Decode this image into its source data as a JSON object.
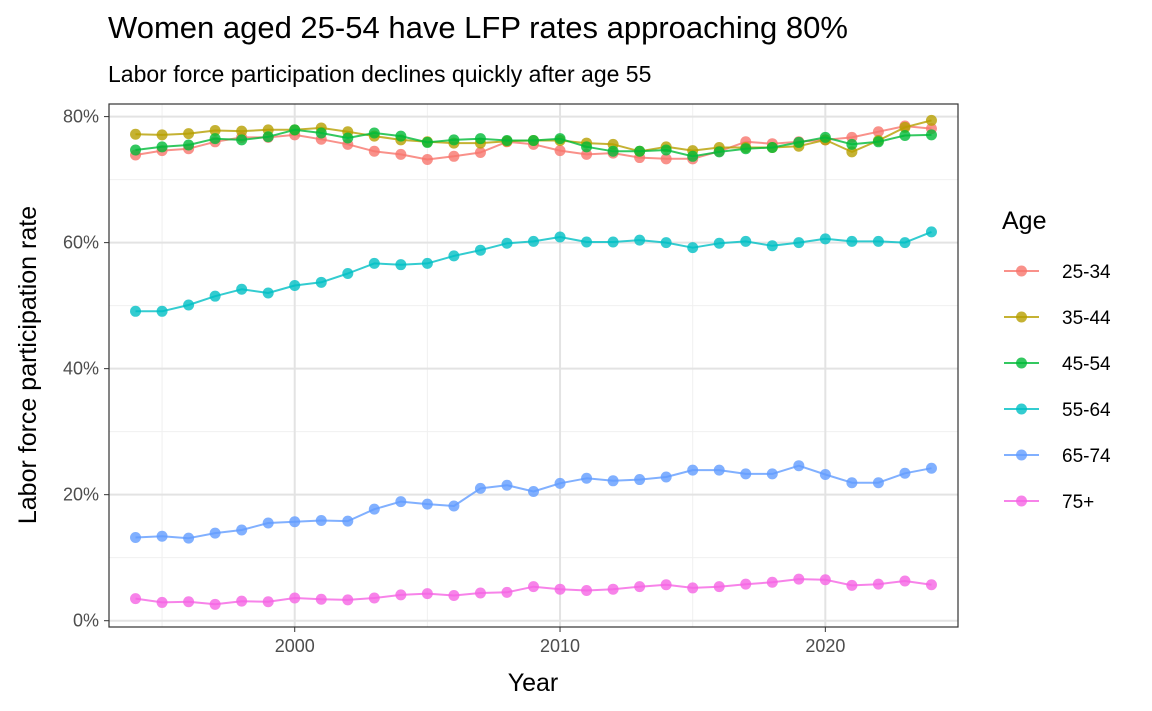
{
  "chart_data": {
    "type": "line",
    "title": "Women aged 25-54 have LFP rates approaching 80%",
    "subtitle": "Labor force participation declines quickly after age 55",
    "xlabel": "Year",
    "ylabel": "Labor force participation rate",
    "xlim": [
      1993,
      2025
    ],
    "ylim": [
      -0.01,
      0.82
    ],
    "x_ticks": [
      2000,
      2010,
      2020
    ],
    "x_tick_labels": [
      "2000",
      "2010",
      "2020"
    ],
    "y_ticks": [
      0,
      0.2,
      0.4,
      0.6,
      0.8
    ],
    "y_tick_labels": [
      "0%",
      "20%",
      "40%",
      "60%",
      "80%"
    ],
    "grid": true,
    "legend": {
      "title": "Age",
      "position": "right"
    },
    "x": [
      1994,
      1995,
      1996,
      1997,
      1998,
      1999,
      2000,
      2001,
      2002,
      2003,
      2004,
      2005,
      2006,
      2007,
      2008,
      2009,
      2010,
      2011,
      2012,
      2013,
      2014,
      2015,
      2016,
      2017,
      2018,
      2019,
      2020,
      2021,
      2022,
      2023,
      2024
    ],
    "series": [
      {
        "name": "25-34",
        "color": "#F8766D",
        "values": [
          0.739,
          0.746,
          0.749,
          0.76,
          0.767,
          0.767,
          0.771,
          0.764,
          0.756,
          0.745,
          0.74,
          0.732,
          0.737,
          0.743,
          0.76,
          0.756,
          0.746,
          0.74,
          0.742,
          0.735,
          0.733,
          0.733,
          0.745,
          0.76,
          0.757,
          0.76,
          0.763,
          0.767,
          0.776,
          0.785,
          0.781
        ]
      },
      {
        "name": "35-44",
        "color": "#B79F00",
        "values": [
          0.772,
          0.771,
          0.773,
          0.778,
          0.777,
          0.779,
          0.779,
          0.782,
          0.776,
          0.769,
          0.763,
          0.76,
          0.758,
          0.758,
          0.761,
          0.762,
          0.762,
          0.758,
          0.756,
          0.745,
          0.752,
          0.746,
          0.751,
          0.751,
          0.751,
          0.753,
          0.763,
          0.744,
          0.762,
          0.783,
          0.794
        ]
      },
      {
        "name": "45-54",
        "color": "#00BA38",
        "values": [
          0.747,
          0.752,
          0.755,
          0.765,
          0.763,
          0.768,
          0.779,
          0.774,
          0.766,
          0.774,
          0.769,
          0.759,
          0.763,
          0.765,
          0.762,
          0.762,
          0.765,
          0.752,
          0.745,
          0.745,
          0.747,
          0.737,
          0.744,
          0.749,
          0.751,
          0.759,
          0.767,
          0.756,
          0.76,
          0.77,
          0.771
        ]
      },
      {
        "name": "55-64",
        "color": "#00BFC4",
        "values": [
          0.491,
          0.491,
          0.501,
          0.515,
          0.526,
          0.52,
          0.532,
          0.537,
          0.551,
          0.567,
          0.565,
          0.567,
          0.579,
          0.588,
          0.599,
          0.602,
          0.609,
          0.601,
          0.601,
          0.604,
          0.6,
          0.592,
          0.599,
          0.602,
          0.595,
          0.6,
          0.606,
          0.602,
          0.602,
          0.6,
          0.617
        ]
      },
      {
        "name": "65-74",
        "color": "#619CFF",
        "values": [
          0.132,
          0.134,
          0.131,
          0.139,
          0.144,
          0.155,
          0.157,
          0.159,
          0.158,
          0.177,
          0.189,
          0.185,
          0.182,
          0.21,
          0.215,
          0.205,
          0.218,
          0.226,
          0.222,
          0.224,
          0.228,
          0.239,
          0.239,
          0.233,
          0.233,
          0.246,
          0.232,
          0.219,
          0.219,
          0.234,
          0.242
        ]
      },
      {
        "name": "75+",
        "color": "#F564E3",
        "values": [
          0.035,
          0.029,
          0.03,
          0.026,
          0.031,
          0.03,
          0.036,
          0.034,
          0.033,
          0.036,
          0.041,
          0.043,
          0.04,
          0.044,
          0.045,
          0.054,
          0.05,
          0.048,
          0.05,
          0.054,
          0.057,
          0.052,
          0.054,
          0.058,
          0.061,
          0.066,
          0.065,
          0.056,
          0.058,
          0.063,
          0.057
        ]
      }
    ]
  }
}
